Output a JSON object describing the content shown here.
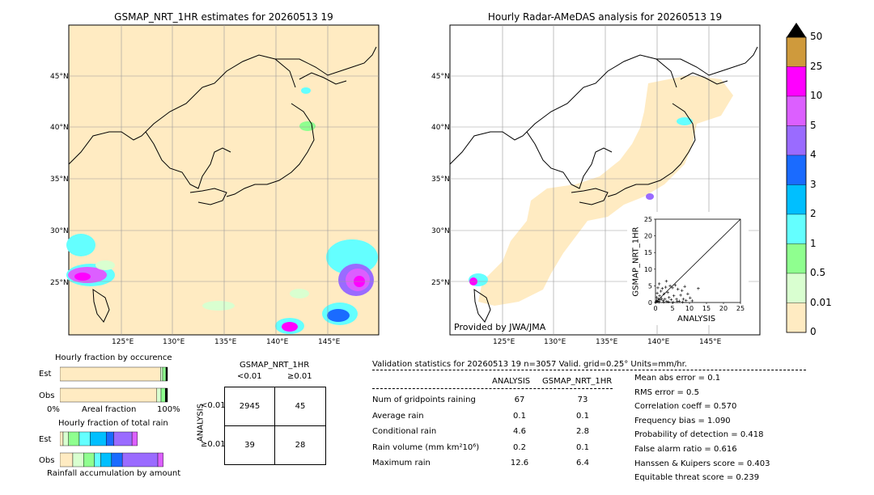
{
  "maps": {
    "left_title": "GSMAP_NRT_1HR estimates for 20260513 19",
    "right_title": "Hourly Radar-AMeDAS analysis for 20260513 19",
    "lat_labels": [
      "45°N",
      "40°N",
      "35°N",
      "30°N",
      "25°N"
    ],
    "lon_labels": [
      "125°E",
      "130°E",
      "135°E",
      "140°E",
      "145°E"
    ],
    "provided_by": "Provided by JWA/JMA"
  },
  "colorbar": {
    "labels": [
      "50",
      "25",
      "10",
      "5",
      "4",
      "3",
      "2",
      "1",
      "0.5",
      "0.01",
      "0"
    ],
    "colors": [
      "#cf9a3c",
      "#ff00ff",
      "#dc5fff",
      "#9a6bff",
      "#1a6bff",
      "#00bfff",
      "#64ffff",
      "#8fff8f",
      "#d9ffd0",
      "#ffebc2"
    ]
  },
  "chart_data": {
    "type": "scatter",
    "xlabel": "ANALYSIS",
    "ylabel": "GSMAP_NRT_1HR",
    "xlim": [
      0,
      25
    ],
    "ylim": [
      0,
      25
    ],
    "ticks": [
      "0",
      "5",
      "10",
      "15",
      "20",
      "25"
    ],
    "points": [
      [
        0.2,
        0.2
      ],
      [
        0.4,
        0.6
      ],
      [
        0.6,
        0.3
      ],
      [
        0.8,
        1.1
      ],
      [
        1.0,
        0.4
      ],
      [
        1.2,
        2.0
      ],
      [
        1.4,
        0.8
      ],
      [
        1.6,
        3.4
      ],
      [
        1.8,
        1.2
      ],
      [
        2.0,
        4.2
      ],
      [
        2.2,
        0.6
      ],
      [
        2.5,
        2.6
      ],
      [
        2.8,
        1.0
      ],
      [
        3.0,
        4.6
      ],
      [
        3.3,
        0.3
      ],
      [
        3.6,
        3.0
      ],
      [
        4.0,
        1.5
      ],
      [
        4.3,
        5.0
      ],
      [
        4.6,
        0.8
      ],
      [
        5.0,
        4.4
      ],
      [
        5.4,
        2.0
      ],
      [
        5.8,
        5.2
      ],
      [
        6.2,
        1.0
      ],
      [
        6.6,
        4.0
      ],
      [
        7.0,
        0.4
      ],
      [
        7.4,
        2.2
      ],
      [
        7.8,
        3.6
      ],
      [
        8.2,
        1.0
      ],
      [
        8.6,
        4.8
      ],
      [
        9.0,
        0.6
      ],
      [
        9.5,
        2.6
      ],
      [
        10.2,
        1.4
      ],
      [
        10.8,
        0.5
      ],
      [
        12.6,
        4.2
      ],
      [
        1.0,
        0.1
      ],
      [
        2.4,
        0.1
      ],
      [
        3.8,
        0.2
      ],
      [
        5.2,
        0.1
      ],
      [
        6.4,
        0.3
      ],
      [
        8.0,
        0.1
      ],
      [
        0.3,
        1.5
      ],
      [
        0.5,
        2.8
      ],
      [
        0.7,
        4.4
      ],
      [
        1.1,
        5.6
      ],
      [
        3.2,
        6.4
      ]
    ]
  },
  "occurrence": {
    "title": "Hourly fraction by occurence",
    "est_label": "Est",
    "obs_label": "Obs",
    "axis_left": "0%",
    "axis_mid": "Areal fraction",
    "axis_right": "100%",
    "est_fractions": [
      0.935,
      0.02,
      0.03,
      0.015
    ],
    "obs_fractions": [
      0.9,
      0.04,
      0.04,
      0.02
    ],
    "segment_colors": [
      "#ffebc2",
      "#d9ffd0",
      "#8fff8f",
      "#000000"
    ]
  },
  "amount": {
    "title": "Hourly fraction of total rain",
    "est_label": "Est",
    "obs_label": "Obs",
    "footer": "Rainfall accumulation by amount",
    "est_fractions": [
      0.03,
      0.05,
      0.1,
      0.1,
      0.15,
      0.07,
      0.17,
      0.05
    ],
    "obs_fractions": [
      0.12,
      0.1,
      0.1,
      0.06,
      0.1,
      0.1,
      0.33,
      0.05
    ],
    "segment_colors": [
      "#ffebc2",
      "#d9ffd0",
      "#8fff8f",
      "#64ffff",
      "#00bfff",
      "#1a6bff",
      "#9a6bff",
      "#dc5fff"
    ]
  },
  "contingency": {
    "title": "GSMAP_NRT_1HR",
    "col_lt": "<0.01",
    "col_ge": "≥0.01",
    "row_axis": "ANALYSIS",
    "row_lt": "<0.01",
    "row_ge": "≥0.01",
    "cells": [
      "2945",
      "45",
      "39",
      "28"
    ]
  },
  "validation": {
    "header": "Validation statistics for 20260513 19  n=3057 Valid. grid=0.25° Units=mm/hr.",
    "col_analysis": "ANALYSIS",
    "col_gsmap": "GSMAP_NRT_1HR",
    "rows": [
      {
        "label": "Num of gridpoints raining",
        "analysis": "67",
        "gsmap": "73"
      },
      {
        "label": "Average rain",
        "analysis": "0.1",
        "gsmap": "0.1"
      },
      {
        "label": "Conditional rain",
        "analysis": "4.6",
        "gsmap": "2.8"
      },
      {
        "label": "Rain volume (mm km²10⁶)",
        "analysis": "0.2",
        "gsmap": "0.1"
      },
      {
        "label": "Maximum rain",
        "analysis": "12.6",
        "gsmap": "6.4"
      }
    ],
    "scores": [
      "Mean abs error =    0.1",
      "RMS error =    0.5",
      "Correlation coeff =  0.570",
      "Frequency bias =  1.090",
      "Probability of detection =  0.418",
      "False alarm ratio =  0.616",
      "Hanssen & Kuipers score =  0.403",
      "Equitable threat score =  0.239"
    ]
  }
}
